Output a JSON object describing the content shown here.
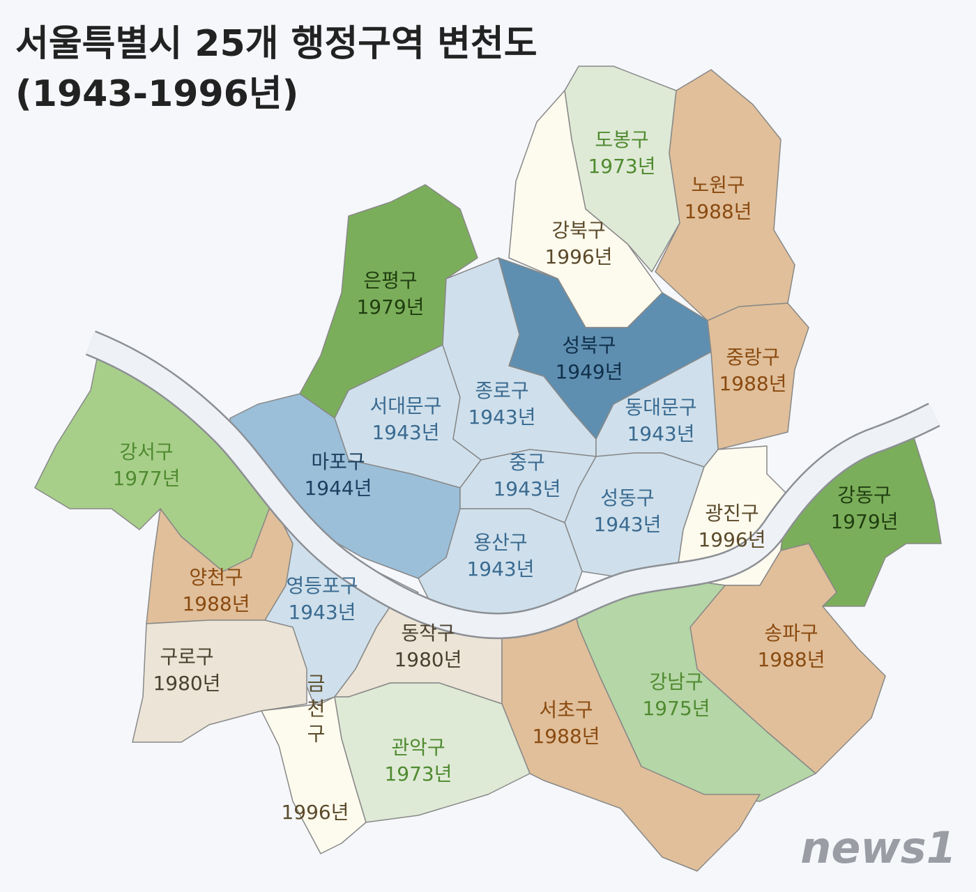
{
  "header": {
    "title": "서울특별시 25개 행정구역 변천도",
    "subtitle": "(1943-1996년)"
  },
  "districts": [
    {
      "name": "도봉구",
      "year": "1973년"
    },
    {
      "name": "노원구",
      "year": "1988년"
    },
    {
      "name": "강북구",
      "year": "1996년"
    },
    {
      "name": "은평구",
      "year": "1979년"
    },
    {
      "name": "성북구",
      "year": "1949년"
    },
    {
      "name": "중랑구",
      "year": "1988년"
    },
    {
      "name": "서대문구",
      "year": "1943년"
    },
    {
      "name": "종로구",
      "year": "1943년"
    },
    {
      "name": "동대문구",
      "year": "1943년"
    },
    {
      "name": "강서구",
      "year": "1977년"
    },
    {
      "name": "마포구",
      "year": "1944년"
    },
    {
      "name": "중구",
      "year": "1943년"
    },
    {
      "name": "성동구",
      "year": "1943년"
    },
    {
      "name": "광진구",
      "year": "1996년"
    },
    {
      "name": "강동구",
      "year": "1979년"
    },
    {
      "name": "용산구",
      "year": "1943년"
    },
    {
      "name": "양천구",
      "year": "1988년"
    },
    {
      "name": "영등포구",
      "year": "1943년"
    },
    {
      "name": "동작구",
      "year": "1980년"
    },
    {
      "name": "송파구",
      "year": "1988년"
    },
    {
      "name": "구로구",
      "year": "1980년"
    },
    {
      "name": "강남구",
      "year": "1975년"
    },
    {
      "name": "서초구",
      "year": "1988년"
    },
    {
      "name": "금천구",
      "year": "1996년"
    },
    {
      "name": "관악구",
      "year": "1973년"
    }
  ],
  "logo": "news1"
}
